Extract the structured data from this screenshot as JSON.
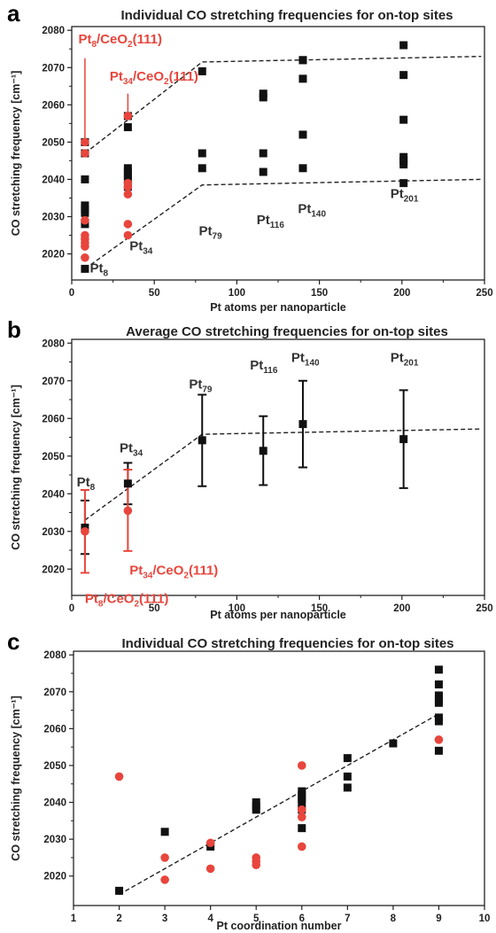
{
  "colors": {
    "black_series": "#111111",
    "red_series": "#e8453c",
    "trend": "#222222"
  },
  "chart_data": [
    {
      "panel": "a",
      "type": "scatter",
      "title": "Individual CO stretching frequencies for on-top sites",
      "xlabel": "Pt atoms per nanoparticle",
      "ylabel": "CO stretching frequency [cm⁻¹]",
      "xlim": [
        0,
        250
      ],
      "ylim": [
        2013,
        2081
      ],
      "xticks": [
        0,
        50,
        100,
        150,
        200,
        250
      ],
      "yticks": [
        2020,
        2030,
        2040,
        2050,
        2060,
        2070,
        2080
      ],
      "series": [
        {
          "color": "black",
          "marker": "square",
          "x": [
            8,
            8,
            8,
            8,
            8,
            8,
            8,
            8,
            34,
            34,
            34,
            34,
            34,
            34,
            34,
            79,
            79,
            79,
            116,
            116,
            116,
            116,
            140,
            140,
            140,
            140,
            140,
            201,
            201,
            201,
            201,
            201,
            201,
            201
          ],
          "y": [
            2016,
            2028,
            2031,
            2032,
            2033,
            2040,
            2047,
            2050,
            2038,
            2040,
            2041,
            2042,
            2043,
            2054,
            2057,
            2043,
            2047,
            2069,
            2042,
            2047,
            2062,
            2063,
            2043,
            2052,
            2067,
            2072,
            2072,
            2039,
            2044,
            2045,
            2046,
            2056,
            2068,
            2076
          ]
        },
        {
          "color": "red",
          "marker": "circle",
          "x": [
            8,
            8,
            8,
            8,
            8,
            8,
            8,
            8,
            34,
            34,
            34,
            34,
            34,
            34
          ],
          "y": [
            2019,
            2022,
            2023,
            2024,
            2025,
            2029,
            2047,
            2050,
            2025,
            2028,
            2036,
            2038,
            2039,
            2057
          ]
        }
      ],
      "trend_lines": [
        {
          "points": [
            [
              8,
              2047
            ],
            [
              79,
              2071.5
            ],
            [
              248,
              2073
            ]
          ]
        },
        {
          "points": [
            [
              8,
              2016
            ],
            [
              79,
              2038.5
            ],
            [
              248,
              2040
            ]
          ]
        }
      ],
      "annotations": [
        {
          "text": "Pt",
          "sub": "8",
          "suffix": "/CeO",
          "sub2": "2",
          "suffix2": "(111)",
          "x": 4,
          "y": 2076.5,
          "color": "red"
        },
        {
          "text": "Pt",
          "sub": "34",
          "suffix": "/CeO",
          "sub2": "2",
          "suffix2": "(111)",
          "x": 23,
          "y": 2066.5,
          "color": "red"
        },
        {
          "text": "Pt",
          "sub": "8",
          "x": 11,
          "y": 2015,
          "color": "dark"
        },
        {
          "text": "Pt",
          "sub": "34",
          "x": 35,
          "y": 2021,
          "color": "dark"
        },
        {
          "text": "Pt",
          "sub": "79",
          "x": 77,
          "y": 2025,
          "color": "dark"
        },
        {
          "text": "Pt",
          "sub": "116",
          "x": 112,
          "y": 2028,
          "color": "dark"
        },
        {
          "text": "Pt",
          "sub": "140",
          "x": 137,
          "y": 2031,
          "color": "dark"
        },
        {
          "text": "Pt",
          "sub": "201",
          "x": 193,
          "y": 2035,
          "color": "dark"
        }
      ]
    },
    {
      "panel": "b",
      "type": "scatter",
      "title": "Average CO stretching frequencies for on-top sites",
      "xlabel": "Pt atoms per nanoparticle",
      "ylabel": "CO stretching frequency [cm⁻¹]",
      "xlim": [
        0,
        250
      ],
      "ylim": [
        2013,
        2081
      ],
      "xticks": [
        0,
        50,
        100,
        150,
        200,
        250
      ],
      "yticks": [
        2020,
        2030,
        2040,
        2050,
        2060,
        2070,
        2080
      ],
      "series": [
        {
          "color": "black",
          "marker": "square",
          "x": [
            8,
            34,
            79,
            116,
            140,
            201
          ],
          "y": [
            2031,
            2042.7,
            2054.2,
            2051.4,
            2058.5,
            2054.5
          ],
          "err_low": [
            2024,
            2037.2,
            2042,
            2042.3,
            2047,
            2041.5
          ],
          "err_high": [
            2038.2,
            2048.2,
            2066.3,
            2060.6,
            2070,
            2067.5
          ]
        },
        {
          "color": "red",
          "marker": "circle",
          "x": [
            8,
            34
          ],
          "y": [
            2030,
            2035.5
          ],
          "err_low": [
            2019,
            2024.8
          ],
          "err_high": [
            2041,
            2046.4
          ]
        }
      ],
      "trend_lines": [
        {
          "points": [
            [
              8,
              2033
            ],
            [
              79,
              2055.8
            ],
            [
              248,
              2057.2
            ]
          ]
        }
      ],
      "annotations": [
        {
          "text": "Pt",
          "sub": "8",
          "x": 3,
          "y": 2042,
          "color": "dark"
        },
        {
          "text": "Pt",
          "sub": "34",
          "x": 29,
          "y": 2051,
          "color": "dark"
        },
        {
          "text": "Pt",
          "sub": "79",
          "x": 71,
          "y": 2068,
          "color": "dark"
        },
        {
          "text": "Pt",
          "sub": "116",
          "x": 108,
          "y": 2073,
          "color": "dark"
        },
        {
          "text": "Pt",
          "sub": "140",
          "x": 133,
          "y": 2075,
          "color": "dark"
        },
        {
          "text": "Pt",
          "sub": "201",
          "x": 193,
          "y": 2075,
          "color": "dark"
        },
        {
          "text": "Pt",
          "sub": "34",
          "suffix": "/CeO",
          "sub2": "2",
          "suffix2": "(111)",
          "x": 35,
          "y": 2018.5,
          "color": "red"
        },
        {
          "text": "Pt",
          "sub": "8",
          "suffix": "/CeO",
          "sub2": "2",
          "suffix2": "(111)",
          "x": 8,
          "y": 2011,
          "color": "red"
        }
      ]
    },
    {
      "panel": "c",
      "type": "scatter",
      "title": "Individual CO stretching frequencies for on-top sites",
      "xlabel": "Pt coordination number",
      "ylabel": "CO stretching frequency [cm⁻¹]",
      "xlim": [
        1,
        10
      ],
      "ylim": [
        2012,
        2081
      ],
      "xticks": [
        1,
        2,
        3,
        4,
        5,
        6,
        7,
        8,
        9,
        10
      ],
      "yticks": [
        2020,
        2030,
        2040,
        2050,
        2060,
        2070,
        2080
      ],
      "series": [
        {
          "color": "black",
          "marker": "square",
          "x": [
            2,
            3,
            4,
            5,
            5,
            5,
            6,
            6,
            6,
            6,
            6,
            6,
            7,
            7,
            7,
            8,
            9,
            9,
            9,
            9,
            9,
            9,
            9,
            9
          ],
          "y": [
            2016,
            2032,
            2028,
            2038,
            2039,
            2040,
            2033,
            2038,
            2040,
            2041,
            2042,
            2043,
            2044,
            2047,
            2052,
            2056,
            2054,
            2062,
            2063,
            2067,
            2068,
            2069,
            2072,
            2076
          ]
        },
        {
          "color": "red",
          "marker": "circle",
          "x": [
            2,
            3,
            3,
            4,
            4,
            5,
            5,
            5,
            6,
            6,
            6,
            6,
            9
          ],
          "y": [
            2047,
            2019,
            2025,
            2022,
            2029,
            2023,
            2024,
            2025,
            2028,
            2036,
            2038,
            2050,
            2057
          ]
        }
      ],
      "trend_lines": [
        {
          "points": [
            [
              2,
              2015
            ],
            [
              9,
              2064
            ]
          ]
        }
      ],
      "annotations": []
    }
  ]
}
